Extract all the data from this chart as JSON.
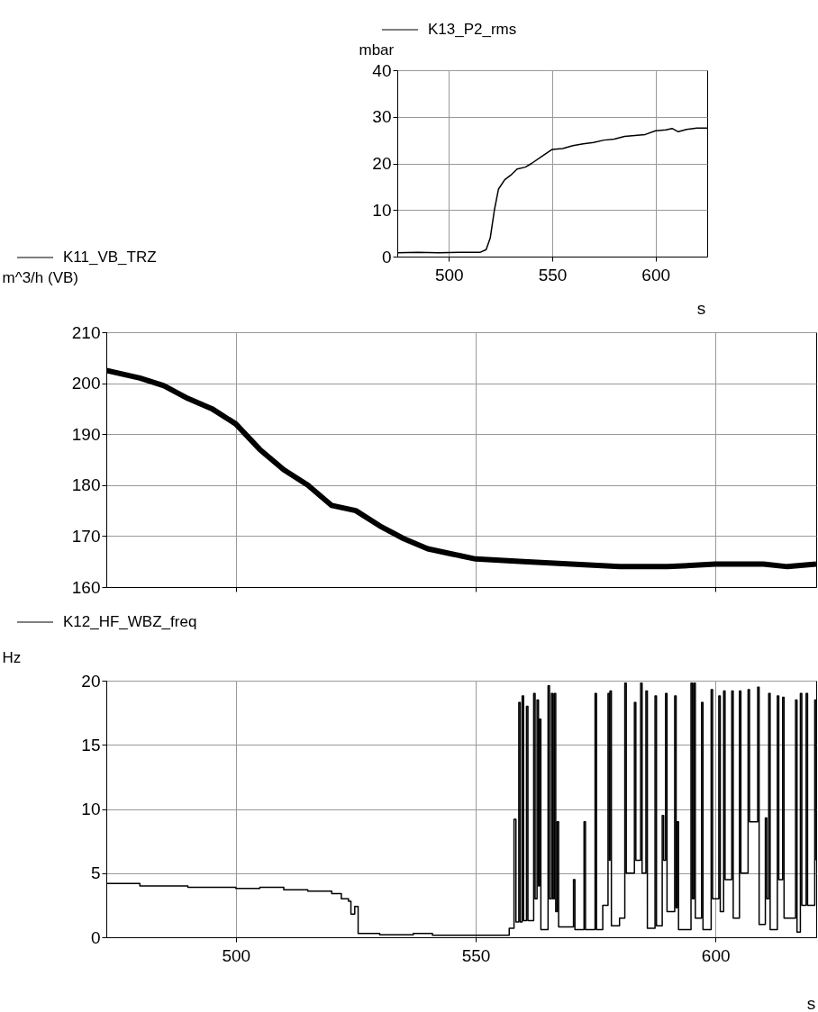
{
  "chart_data": [
    {
      "type": "line",
      "xlabel": "s",
      "ylabel": "mbar",
      "xlim": [
        475,
        625
      ],
      "xticks": [
        500,
        550,
        600
      ],
      "ylim": [
        0,
        40
      ],
      "yticks": [
        0,
        10,
        20,
        30,
        40
      ],
      "grid": true,
      "legend": "top left",
      "series": [
        {
          "name": "K13_P2_rms",
          "color": "#000000",
          "x": [
            475,
            485,
            495,
            505,
            515,
            518,
            520,
            522,
            524,
            527,
            530,
            533,
            537,
            540,
            545,
            550,
            555,
            560,
            565,
            570,
            575,
            580,
            585,
            590,
            595,
            600,
            605,
            608,
            611,
            615,
            620,
            625
          ],
          "values": [
            0.8,
            0.9,
            0.8,
            0.9,
            0.9,
            1.5,
            4,
            10,
            14.5,
            16.5,
            17.5,
            18.8,
            19.2,
            20,
            21.5,
            23,
            23.2,
            23.8,
            24.2,
            24.5,
            25,
            25.2,
            25.8,
            26,
            26.2,
            27,
            27.2,
            27.5,
            26.8,
            27.3,
            27.6,
            27.6
          ]
        }
      ]
    },
    {
      "type": "line",
      "ylabel": "m^3/h (VB)",
      "xlim": [
        473,
        621
      ],
      "xticks": [
        500,
        550,
        600
      ],
      "ylim": [
        160,
        210
      ],
      "yticks": [
        160,
        170,
        180,
        190,
        200,
        210
      ],
      "grid": true,
      "legend": "top left",
      "tick_labels": "y",
      "series": [
        {
          "name": "K11_VB_TRZ",
          "color": "#000000",
          "x": [
            473,
            480,
            485,
            490,
            495,
            500,
            505,
            510,
            515,
            520,
            525,
            530,
            535,
            540,
            545,
            550,
            560,
            570,
            580,
            590,
            600,
            610,
            615,
            621
          ],
          "values": [
            202.5,
            201,
            199.5,
            197,
            195,
            192,
            187,
            183,
            180,
            176,
            175,
            172,
            169.5,
            167.5,
            166.5,
            165.5,
            165,
            164.5,
            164,
            164,
            164.5,
            164.5,
            164,
            164.5
          ]
        }
      ]
    },
    {
      "type": "step",
      "xlabel": "s",
      "ylabel": "Hz",
      "xlim": [
        473,
        621
      ],
      "xticks": [
        500,
        550,
        600
      ],
      "ylim": [
        0,
        20
      ],
      "yticks": [
        0,
        5,
        10,
        15,
        20
      ],
      "grid": true,
      "legend": "top left",
      "series": [
        {
          "name": "K12_HF_WBZ_freq",
          "color": "#000000",
          "x": [
            473,
            480,
            490,
            500,
            505,
            510,
            515,
            520,
            522,
            523.5,
            524,
            524.8,
            525.5,
            530,
            537,
            541,
            557,
            558,
            558.4,
            559,
            559.3,
            559.7,
            560,
            560.6,
            560.9,
            562.1,
            562.4,
            562.8,
            563.1,
            563.3,
            563.6,
            565.1,
            565.4,
            565.8,
            566.1,
            566.4,
            566.7,
            567,
            567.3,
            570.4,
            570.7,
            572.6,
            572.9,
            574.9,
            575.2,
            576.5,
            577.6,
            577.9,
            578,
            578.3,
            580,
            581.1,
            581.4,
            583.1,
            583.4,
            584.4,
            584.7,
            585.5,
            585.8,
            587.4,
            587.7,
            588.9,
            589.2,
            589.6,
            589.9,
            591.5,
            591.8,
            592,
            592.3,
            594.9,
            595.2,
            595.5,
            595.8,
            597.1,
            597.4,
            599.1,
            599.4,
            600.7,
            601,
            601.7,
            602,
            603.4,
            603.7,
            605,
            605.3,
            606.8,
            607.1,
            608.8,
            609.1,
            610.4,
            610.7,
            611.1,
            611.4,
            612.9,
            613.2,
            614,
            614.3,
            616.7,
            617,
            617.7,
            618,
            618.9,
            619.2,
            620.7,
            621
          ],
          "values": [
            4.2,
            4.0,
            3.9,
            3.8,
            3.9,
            3.7,
            3.6,
            3.4,
            3.0,
            2.8,
            1.8,
            2.4,
            0.3,
            0.2,
            0.3,
            0.15,
            0.7,
            9.2,
            1.2,
            18.3,
            1.2,
            18.8,
            1.3,
            18,
            1.3,
            19,
            3,
            18.5,
            4,
            17,
            0.6,
            19.6,
            3,
            19,
            3,
            19,
            2,
            9,
            0.8,
            4.5,
            0.6,
            9,
            0.6,
            19,
            0.6,
            2.5,
            19,
            6,
            19.2,
            0.9,
            1.5,
            19.8,
            5,
            18.3,
            6,
            19.8,
            5,
            19.2,
            0.7,
            18.8,
            0.9,
            9.5,
            6,
            19,
            2,
            18.8,
            2.3,
            9,
            0.6,
            19.8,
            3,
            19.8,
            1.5,
            18.3,
            0.6,
            19.3,
            3,
            18.8,
            2,
            19.2,
            4.5,
            19.2,
            1.5,
            19.2,
            5,
            19.3,
            9,
            19.5,
            1.0,
            9.3,
            3,
            19,
            0.6,
            18.8,
            4.5,
            18.7,
            1.5,
            18.5,
            0.4,
            19,
            2.5,
            19,
            2.5,
            18.5,
            6
          ]
        }
      ]
    }
  ]
}
